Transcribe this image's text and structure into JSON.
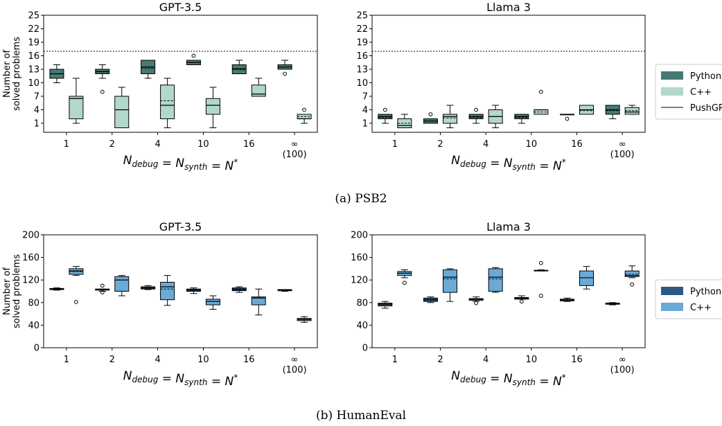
{
  "figure": {
    "captions": [
      "(a) PSB2",
      "(b) HumanEval"
    ]
  },
  "colors": {
    "psb2_python": "#477a74",
    "psb2_cpp": "#b2d8cb",
    "he_python": "#2d5a84",
    "he_cpp": "#6aaad6",
    "pushgp_line": "#000000"
  },
  "legends": {
    "psb2": [
      {
        "label": "Python",
        "kind": "patch",
        "color": "#477a74"
      },
      {
        "label": "C++",
        "kind": "patch",
        "color": "#b2d8cb"
      },
      {
        "label": "PushGP",
        "kind": "line",
        "color": "#000000"
      }
    ],
    "humaneval": [
      {
        "label": "Python",
        "kind": "patch",
        "color": "#2d5a84"
      },
      {
        "label": "C++",
        "kind": "patch",
        "color": "#6aaad6"
      }
    ]
  },
  "chart_data": [
    {
      "type": "box",
      "group": "psb2",
      "title": "GPT-3.5",
      "ylabel": "Number of solved problems",
      "xlabel": "N_debug = N_synth = N*",
      "categories": [
        "1",
        "2",
        "4",
        "10",
        "16",
        "∞\n(100)"
      ],
      "yticks": [
        1,
        4,
        7,
        10,
        13,
        16,
        19,
        22,
        25
      ],
      "ylim": [
        -1,
        25
      ],
      "reference_line": {
        "name": "PushGP",
        "value": 17
      },
      "series": [
        {
          "name": "Python",
          "boxes": [
            {
              "min": 10,
              "q1": 11,
              "median": 12,
              "mean": 12,
              "q3": 13,
              "max": 14,
              "outliers": []
            },
            {
              "min": 11,
              "q1": 12,
              "median": 12.5,
              "mean": 12.4,
              "q3": 13,
              "max": 14,
              "outliers": [
                8
              ]
            },
            {
              "min": 11,
              "q1": 12,
              "median": 13.5,
              "mean": 13.2,
              "q3": 15,
              "max": 15,
              "outliers": []
            },
            {
              "min": 14,
              "q1": 14,
              "median": 14.5,
              "mean": 14.5,
              "q3": 15,
              "max": 15,
              "outliers": [
                16
              ]
            },
            {
              "min": 12,
              "q1": 12,
              "median": 13,
              "mean": 13.2,
              "q3": 14,
              "max": 15,
              "outliers": []
            },
            {
              "min": 13,
              "q1": 13,
              "median": 13.5,
              "mean": 13.5,
              "q3": 14,
              "max": 15,
              "outliers": [
                12
              ]
            }
          ]
        },
        {
          "name": "C++",
          "boxes": [
            {
              "min": 1,
              "q1": 2,
              "median": 6.5,
              "mean": 6.5,
              "q3": 7,
              "max": 11,
              "outliers": []
            },
            {
              "min": 0,
              "q1": 0,
              "median": 4,
              "mean": 4,
              "q3": 7,
              "max": 9,
              "outliers": []
            },
            {
              "min": 0,
              "q1": 2,
              "median": 5,
              "mean": 6,
              "q3": 9.5,
              "max": 11,
              "outliers": []
            },
            {
              "min": 0,
              "q1": 3,
              "median": 5,
              "mean": 5,
              "q3": 6.5,
              "max": 9,
              "outliers": []
            },
            {
              "min": 7,
              "q1": 7,
              "median": 7.5,
              "mean": 7.5,
              "q3": 9.5,
              "max": 11,
              "outliers": []
            },
            {
              "min": 1,
              "q1": 2,
              "median": 2,
              "mean": 2.5,
              "q3": 3,
              "max": 3,
              "outliers": [
                4
              ]
            }
          ]
        }
      ]
    },
    {
      "type": "box",
      "group": "psb2",
      "title": "Llama 3",
      "ylabel": "",
      "xlabel": "N_debug = N_synth = N*",
      "categories": [
        "1",
        "2",
        "4",
        "10",
        "16",
        "∞\n(100)"
      ],
      "yticks": [
        1,
        4,
        7,
        10,
        13,
        16,
        19,
        22,
        25
      ],
      "ylim": [
        -1,
        25
      ],
      "reference_line": {
        "name": "PushGP",
        "value": 17
      },
      "series": [
        {
          "name": "Python",
          "boxes": [
            {
              "min": 1,
              "q1": 2,
              "median": 2.5,
              "mean": 2.3,
              "q3": 3,
              "max": 3,
              "outliers": [
                4
              ]
            },
            {
              "min": 1,
              "q1": 1,
              "median": 1.5,
              "mean": 1.5,
              "q3": 2,
              "max": 2,
              "outliers": [
                3
              ]
            },
            {
              "min": 1,
              "q1": 2,
              "median": 2.5,
              "mean": 2.3,
              "q3": 3,
              "max": 3,
              "outliers": [
                4
              ]
            },
            {
              "min": 1,
              "q1": 2,
              "median": 2.5,
              "mean": 2.3,
              "q3": 3,
              "max": 3,
              "outliers": []
            },
            {
              "min": 3,
              "q1": 3,
              "median": 3,
              "mean": 3,
              "q3": 3,
              "max": 3,
              "outliers": [
                2
              ]
            },
            {
              "min": 2,
              "q1": 3,
              "median": 4,
              "mean": 3.8,
              "q3": 5,
              "max": 5,
              "outliers": []
            }
          ]
        },
        {
          "name": "C++",
          "boxes": [
            {
              "min": 0,
              "q1": 0,
              "median": 0.5,
              "mean": 1,
              "q3": 2,
              "max": 3,
              "outliers": []
            },
            {
              "min": 0,
              "q1": 1,
              "median": 2.5,
              "mean": 2.2,
              "q3": 3,
              "max": 5,
              "outliers": []
            },
            {
              "min": 0,
              "q1": 1,
              "median": 2.5,
              "mean": 2.5,
              "q3": 4,
              "max": 5,
              "outliers": []
            },
            {
              "min": 3,
              "q1": 3,
              "median": 4,
              "mean": 3.5,
              "q3": 4,
              "max": 4,
              "outliers": [
                8
              ]
            },
            {
              "min": 3,
              "q1": 3,
              "median": 4,
              "mean": 3.8,
              "q3": 5,
              "max": 5,
              "outliers": []
            },
            {
              "min": 3,
              "q1": 3,
              "median": 3.5,
              "mean": 3.8,
              "q3": 4.5,
              "max": 5,
              "outliers": []
            }
          ]
        }
      ]
    },
    {
      "type": "box",
      "group": "humaneval",
      "title": "GPT-3.5",
      "ylabel": "Number of solved problems",
      "xlabel": "N_debug = N_synth = N*",
      "categories": [
        "1",
        "2",
        "4",
        "10",
        "16",
        "∞\n(100)"
      ],
      "yticks": [
        0,
        40,
        80,
        120,
        160,
        200
      ],
      "ylim": [
        0,
        200
      ],
      "series": [
        {
          "name": "Python",
          "boxes": [
            {
              "min": 102,
              "q1": 103,
              "median": 104,
              "mean": 104,
              "q3": 105,
              "max": 106,
              "outliers": []
            },
            {
              "min": 100,
              "q1": 102,
              "median": 103,
              "mean": 103,
              "q3": 104,
              "max": 104,
              "outliers": [
                98,
                110
              ]
            },
            {
              "min": 103,
              "q1": 104,
              "median": 106,
              "mean": 106,
              "q3": 108,
              "max": 110,
              "outliers": []
            },
            {
              "min": 96,
              "q1": 100,
              "median": 102,
              "mean": 102,
              "q3": 104,
              "max": 106,
              "outliers": []
            },
            {
              "min": 98,
              "q1": 101,
              "median": 103,
              "mean": 104,
              "q3": 106,
              "max": 108,
              "outliers": []
            },
            {
              "min": 100,
              "q1": 101,
              "median": 102,
              "mean": 102,
              "q3": 103,
              "max": 103,
              "outliers": []
            }
          ]
        },
        {
          "name": "C++",
          "boxes": [
            {
              "min": 128,
              "q1": 130,
              "median": 136,
              "mean": 135,
              "q3": 140,
              "max": 144,
              "outliers": [
                81
              ]
            },
            {
              "min": 92,
              "q1": 100,
              "median": 120,
              "mean": 120,
              "q3": 126,
              "max": 128,
              "outliers": []
            },
            {
              "min": 75,
              "q1": 85,
              "median": 108,
              "mean": 104,
              "q3": 116,
              "max": 128,
              "outliers": []
            },
            {
              "min": 68,
              "q1": 76,
              "median": 82,
              "mean": 82,
              "q3": 86,
              "max": 92,
              "outliers": []
            },
            {
              "min": 58,
              "q1": 76,
              "median": 88,
              "mean": 88,
              "q3": 90,
              "max": 104,
              "outliers": []
            },
            {
              "min": 45,
              "q1": 48,
              "median": 50,
              "mean": 50,
              "q3": 52,
              "max": 55,
              "outliers": []
            }
          ]
        }
      ]
    },
    {
      "type": "box",
      "group": "humaneval",
      "title": "Llama 3",
      "ylabel": "",
      "xlabel": "N_debug = N_synth = N*",
      "categories": [
        "1",
        "2",
        "4",
        "10",
        "16",
        "∞\n(100)"
      ],
      "yticks": [
        0,
        40,
        80,
        120,
        160,
        200
      ],
      "ylim": [
        0,
        200
      ],
      "series": [
        {
          "name": "Python",
          "boxes": [
            {
              "min": 70,
              "q1": 74,
              "median": 77,
              "mean": 77,
              "q3": 79,
              "max": 82,
              "outliers": []
            },
            {
              "min": 80,
              "q1": 82,
              "median": 85,
              "mean": 85,
              "q3": 88,
              "max": 90,
              "outliers": []
            },
            {
              "min": 82,
              "q1": 84,
              "median": 86,
              "mean": 86,
              "q3": 87,
              "max": 90,
              "outliers": [
                79
              ]
            },
            {
              "min": 86,
              "q1": 86,
              "median": 88,
              "mean": 88,
              "q3": 89,
              "max": 92,
              "outliers": [
                82
              ]
            },
            {
              "min": 82,
              "q1": 83,
              "median": 85,
              "mean": 85,
              "q3": 86,
              "max": 88,
              "outliers": []
            },
            {
              "min": 76,
              "q1": 77,
              "median": 78,
              "mean": 78,
              "q3": 79,
              "max": 80,
              "outliers": []
            }
          ]
        },
        {
          "name": "C++",
          "boxes": [
            {
              "min": 124,
              "q1": 128,
              "median": 132,
              "mean": 132,
              "q3": 135,
              "max": 138,
              "outliers": [
                115
              ]
            },
            {
              "min": 82,
              "q1": 98,
              "median": 125,
              "mean": 122,
              "q3": 138,
              "max": 140,
              "outliers": []
            },
            {
              "min": 98,
              "q1": 100,
              "median": 125,
              "mean": 122,
              "q3": 140,
              "max": 142,
              "outliers": []
            },
            {
              "min": 136,
              "q1": 136,
              "median": 137,
              "mean": 136,
              "q3": 137,
              "max": 138,
              "outliers": [
                92,
                150
              ]
            },
            {
              "min": 104,
              "q1": 110,
              "median": 124,
              "mean": 124,
              "q3": 136,
              "max": 144,
              "outliers": []
            },
            {
              "min": 124,
              "q1": 126,
              "median": 128,
              "mean": 130,
              "q3": 136,
              "max": 145,
              "outliers": [
                112
              ]
            }
          ]
        }
      ]
    }
  ]
}
